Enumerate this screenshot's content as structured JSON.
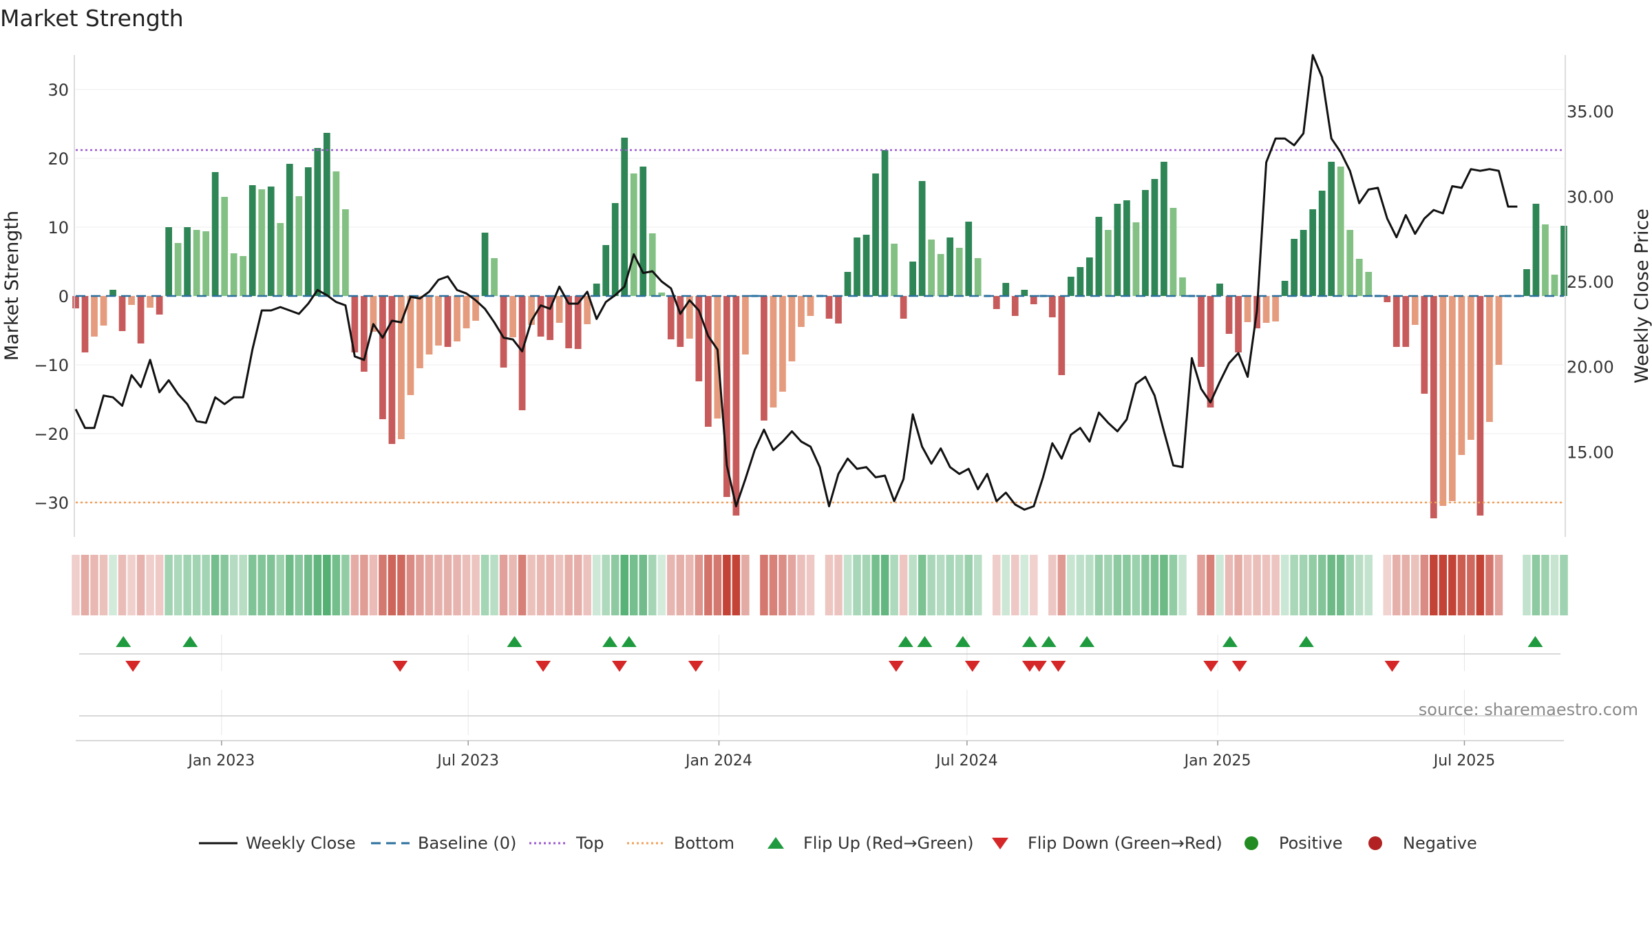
{
  "chart_data": {
    "type": "bar",
    "title": "Market Strength",
    "source": "source: sharemaestro.com",
    "y_left": {
      "label": "Market Strength",
      "lim": [
        -35,
        35
      ],
      "ticks": [
        30,
        20,
        10,
        0,
        -10,
        -20,
        -30
      ],
      "tick_labels": [
        "30",
        "20",
        "10",
        "0",
        "−10",
        "−20",
        "−30"
      ]
    },
    "y_right": {
      "label": "Weekly Close Price",
      "lim": [
        10.0,
        38.3
      ],
      "ticks": [
        35,
        30,
        25,
        20,
        15
      ],
      "tick_labels": [
        "35.00",
        "30.00",
        "25.00",
        "20.00",
        "15.00"
      ]
    },
    "x_axis": {
      "start_date": "2022-09-16",
      "end_date": "2025-09-12",
      "ticks": [
        "2023-01-01",
        "2023-07-01",
        "2024-01-01",
        "2024-07-01",
        "2025-01-01",
        "2025-07-01"
      ],
      "tick_labels": [
        "Jan 2023",
        "Jul 2023",
        "Jan 2024",
        "Jul 2024",
        "Jan 2025",
        "Jul 2025"
      ]
    },
    "reference_lines": {
      "baseline": 0,
      "top": 21.2,
      "bottom": -30.0
    },
    "colors": {
      "pos_strong": "#2e8555",
      "pos_weak": "#82c083",
      "neg_strong": "#c75b5b",
      "neg_weak": "#e59b7d",
      "close": "#111111",
      "baseline": "#2a6f9e",
      "top": "#9b59d0",
      "bottom": "#f0a05a",
      "flip_up": "#1f9a3e",
      "flip_down": "#d62728",
      "positive": "#228b22",
      "negative": "#b22222"
    },
    "strength": [
      -1.8,
      -8.2,
      -5.9,
      -4.3,
      0.9,
      -5.1,
      -1.3,
      -6.9,
      -1.7,
      -2.7,
      10.0,
      7.7,
      10.0,
      9.6,
      9.4,
      18.0,
      14.4,
      6.2,
      5.8,
      16.1,
      15.5,
      15.9,
      10.6,
      19.2,
      14.5,
      18.7,
      21.5,
      23.7,
      18.1,
      12.6,
      -8.2,
      -11.0,
      -5.2,
      -17.9,
      -21.5,
      -20.8,
      -14.4,
      -10.5,
      -8.5,
      -7.2,
      -7.4,
      -6.6,
      -4.7,
      -3.6,
      9.2,
      5.5,
      -10.4,
      -6.0,
      -16.6,
      -4.2,
      -5.9,
      -6.4,
      -3.9,
      -7.6,
      -7.7,
      -4.1,
      1.8,
      7.4,
      13.5,
      23.0,
      17.8,
      18.8,
      9.1,
      0.5,
      -6.3,
      -7.4,
      -6.2,
      -12.4,
      -19.0,
      -17.8,
      -29.2,
      -31.9,
      -8.5,
      0,
      -18.1,
      -16.2,
      -13.9,
      -9.5,
      -4.5,
      -2.9,
      0,
      -3.3,
      -4.0,
      3.5,
      8.5,
      8.9,
      17.8,
      21.2,
      7.6,
      -3.3,
      5.0,
      16.7,
      8.2,
      6.1,
      8.5,
      7.0,
      10.8,
      5.5,
      0,
      -1.9,
      1.9,
      -2.9,
      0.9,
      -1.2,
      0,
      -3.1,
      -11.5,
      2.8,
      4.2,
      5.6,
      11.5,
      9.6,
      13.4,
      13.9,
      10.7,
      15.4,
      17.0,
      19.5,
      12.8,
      2.7,
      0,
      -10.3,
      -16.2,
      1.8,
      -5.5,
      -8.2,
      -3.8,
      -4.7,
      -3.9,
      -3.7,
      2.2,
      8.3,
      9.6,
      12.6,
      15.3,
      19.5,
      18.8,
      9.6,
      5.4,
      3.5,
      0,
      -0.9,
      -7.4,
      -7.4,
      -4.2,
      -14.2,
      -32.3,
      -30.5,
      -29.8,
      -23.1,
      -20.9,
      -31.9,
      -18.3,
      -10.0,
      0,
      0,
      3.9,
      13.4,
      10.4,
      3.1,
      10.2
    ],
    "close": [
      17.5,
      16.4,
      16.4,
      18.3,
      18.2,
      17.7,
      19.5,
      18.8,
      20.4,
      18.5,
      19.2,
      18.4,
      17.8,
      16.8,
      16.7,
      18.2,
      17.8,
      18.2,
      18.2,
      21.0,
      23.3,
      23.3,
      23.5,
      23.3,
      23.1,
      23.7,
      24.5,
      24.2,
      23.8,
      23.6,
      20.6,
      20.4,
      22.5,
      21.7,
      22.7,
      22.6,
      24.1,
      24.0,
      24.4,
      25.1,
      25.3,
      24.5,
      24.3,
      23.9,
      23.4,
      22.6,
      21.7,
      21.6,
      20.9,
      22.7,
      23.6,
      23.4,
      24.7,
      23.7,
      23.7,
      24.4,
      22.8,
      23.8,
      24.2,
      24.7,
      26.6,
      25.5,
      25.6,
      25.0,
      24.6,
      23.1,
      23.9,
      23.3,
      21.8,
      21.0,
      14.2,
      11.8,
      13.4,
      15.1,
      16.3,
      15.1,
      15.6,
      16.2,
      15.6,
      15.3,
      14.1,
      11.8,
      13.7,
      14.6,
      14.0,
      14.1,
      13.5,
      13.6,
      12.1,
      13.4,
      17.2,
      15.3,
      14.3,
      15.2,
      14.1,
      13.7,
      14.0,
      12.8,
      13.7,
      12.1,
      12.6,
      11.9,
      11.6,
      11.8,
      13.5,
      15.5,
      14.6,
      16.0,
      16.4,
      15.6,
      17.3,
      16.7,
      16.2,
      16.9,
      19.0,
      19.4,
      18.3,
      16.2,
      14.2,
      14.1,
      20.5,
      18.7,
      17.9,
      19.1,
      20.2,
      20.8,
      19.4,
      23.3,
      32.0,
      33.4,
      33.4,
      33.0,
      33.7,
      38.3,
      37.0,
      33.4,
      32.6,
      31.5,
      29.6,
      30.4,
      30.5,
      28.7,
      27.6,
      28.9,
      27.8,
      28.7,
      29.2,
      29.0,
      30.6,
      30.5,
      31.6,
      31.5,
      31.6,
      31.5,
      29.4,
      29.4
    ],
    "flip_up_x": [
      "2022-10-21",
      "2022-12-09",
      "2023-08-04",
      "2023-10-13",
      "2023-10-27",
      "2024-05-17",
      "2024-05-31",
      "2024-06-28",
      "2024-08-16",
      "2024-08-30",
      "2024-09-27",
      "2025-01-10",
      "2025-03-07",
      "2025-08-22"
    ],
    "flip_down_x": [
      "2022-10-28",
      "2023-05-12",
      "2023-08-25",
      "2023-10-20",
      "2023-12-15",
      "2024-05-10",
      "2024-07-05",
      "2024-08-16",
      "2024-08-23",
      "2024-09-06",
      "2024-12-27",
      "2025-01-17",
      "2025-05-09"
    ],
    "legend": [
      {
        "label": "Weekly Close",
        "kind": "line"
      },
      {
        "label": "Baseline (0)",
        "kind": "dash"
      },
      {
        "label": "Top",
        "kind": "dot-top"
      },
      {
        "label": "Bottom",
        "kind": "dot-bottom"
      },
      {
        "label": "Flip Up (Red→Green)",
        "kind": "tri-up"
      },
      {
        "label": "Flip Down (Green→Red)",
        "kind": "tri-down"
      },
      {
        "label": "Positive",
        "kind": "dot-pos"
      },
      {
        "label": "Negative",
        "kind": "dot-neg"
      }
    ]
  }
}
